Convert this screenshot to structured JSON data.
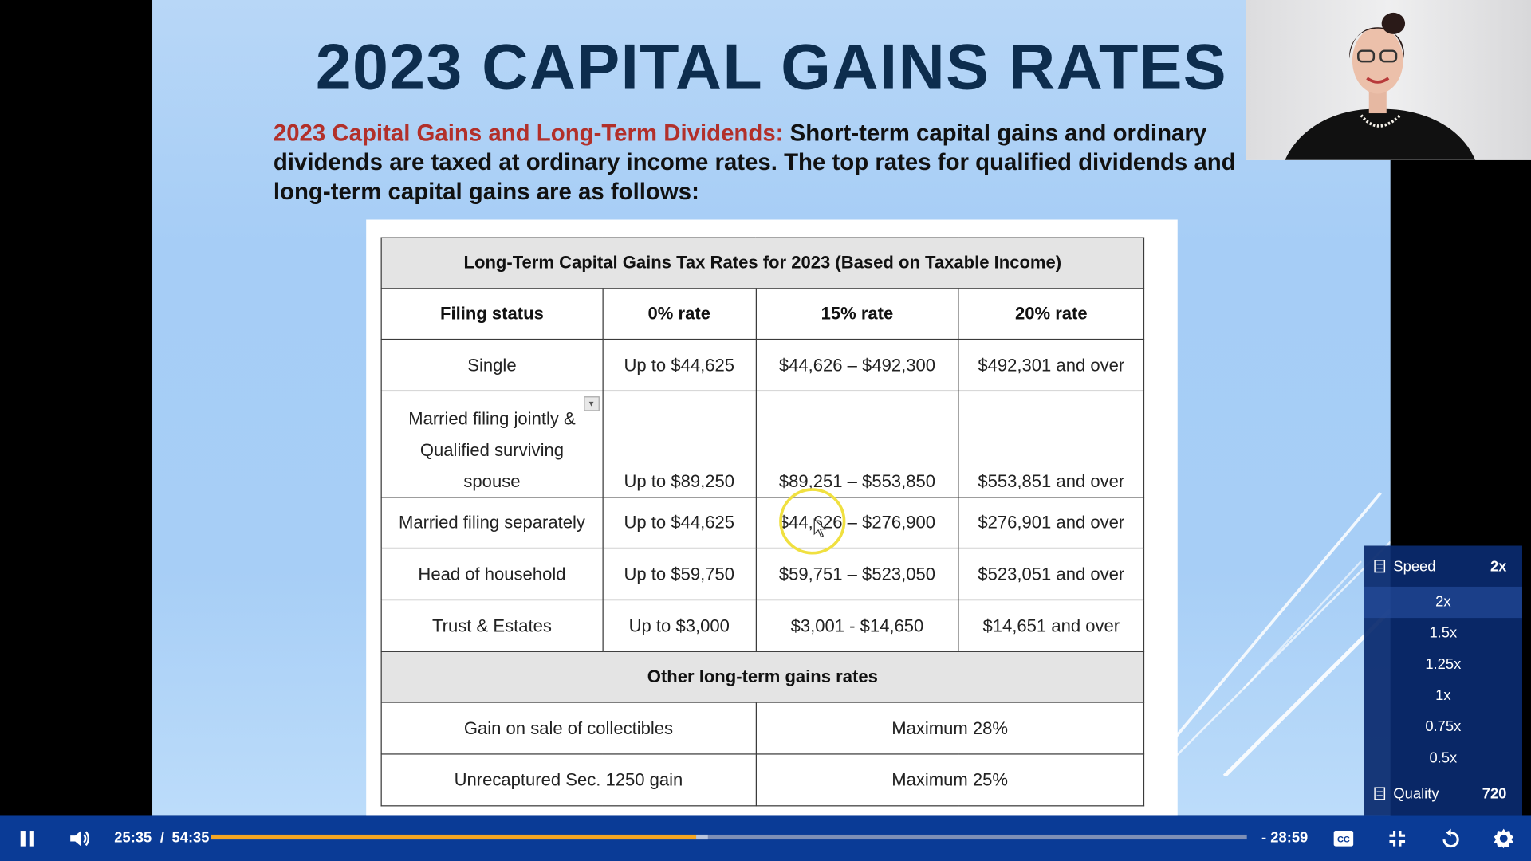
{
  "slide": {
    "title": "2023 CAPITAL GAINS RATES",
    "intro_accent": "2023 Capital Gains and Long-Term Dividends:",
    "intro_line1": "Short-term capital gains and ordinary",
    "intro_line2": "dividends are taxed at ordinary income rates. The top rates for qualified dividends and",
    "intro_line3": "long-term capital gains are as follows:"
  },
  "table": {
    "caption": "Long-Term Capital Gains Tax Rates for 2023 (Based on Taxable Income)",
    "headers": [
      "Filing status",
      "0% rate",
      "15% rate",
      "20% rate"
    ],
    "rows": [
      {
        "status": "Single",
        "r0": "Up to $44,625",
        "r15": "$44,626 – $492,300",
        "r20": "$492,301 and over"
      },
      {
        "status_line1": "Married filing jointly &",
        "status_line2": "Qualified surviving",
        "status_line3": "spouse",
        "r0": "Up to $89,250",
        "r15": "$89,251 – $553,850",
        "r20": "$553,851 and over"
      },
      {
        "status": "Married filing separately",
        "r0": "Up to $44,625",
        "r15": "$44,626 – $276,900",
        "r20": "$276,901 and over"
      },
      {
        "status": "Head of household",
        "r0": "Up to $59,750",
        "r15": "$59,751 – $523,050",
        "r20": "$523,051 and over"
      },
      {
        "status": "Trust & Estates",
        "r0": "Up to $3,000",
        "r15": "$3,001 - $14,650",
        "r20": "$14,651 and over"
      }
    ],
    "other_header": "Other long-term gains rates",
    "other_rows": [
      {
        "label": "Gain on sale of collectibles",
        "value": "Maximum 28%"
      },
      {
        "label": "Unrecaptured Sec. 1250 gain",
        "value": "Maximum 25%"
      }
    ]
  },
  "settings_menu": {
    "speed_label": "Speed",
    "speed_value": "2x",
    "speed_options": [
      "2x",
      "1.5x",
      "1.25x",
      "1x",
      "0.75x",
      "0.5x"
    ],
    "selected_speed": "2x",
    "quality_label": "Quality",
    "quality_value": "720"
  },
  "player": {
    "current_time": "25:35",
    "separator": "/",
    "duration": "54:35",
    "remaining": "- 28:59",
    "played_fraction": 0.4688,
    "buffered_fraction": 0.48,
    "accent_color": "#f5a623",
    "bar_color": "#0a3b96"
  },
  "icons": {
    "play_pause": "pause-icon",
    "volume": "volume-icon",
    "captions": "cc-icon",
    "fullscreen": "exit-fullscreen-icon",
    "replay": "replay-icon",
    "settings": "gear-icon"
  }
}
